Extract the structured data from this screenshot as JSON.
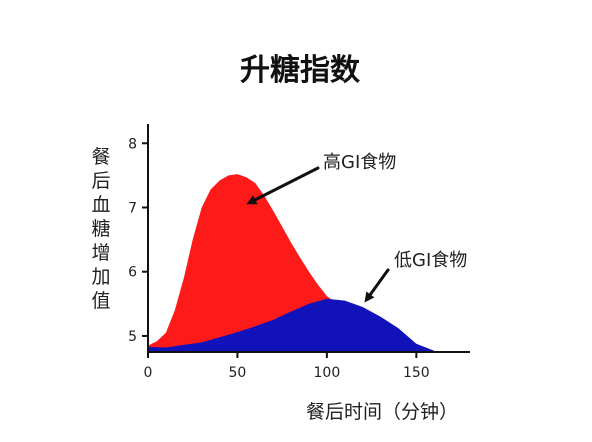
{
  "chart_data": {
    "type": "area",
    "title": "升糖指数",
    "xlabel": "餐后时间（分钟）",
    "ylabel": "餐后血糖增加值",
    "xlim": [
      0,
      180
    ],
    "ylim": [
      4.75,
      8.3
    ],
    "xticks": [
      0,
      50,
      100,
      150
    ],
    "yticks": [
      5,
      6,
      7,
      8
    ],
    "grid": false,
    "legend": "none",
    "series": [
      {
        "name": "高GI食物",
        "color": "#ff1a1a",
        "x": [
          0,
          5,
          10,
          15,
          20,
          25,
          30,
          35,
          40,
          45,
          50,
          55,
          60,
          65,
          70,
          75,
          80,
          85,
          90,
          95,
          100,
          105,
          110,
          115,
          120,
          125,
          130,
          135,
          140,
          145,
          150,
          155,
          160
        ],
        "y": [
          4.85,
          4.92,
          5.05,
          5.4,
          5.9,
          6.5,
          7.0,
          7.28,
          7.42,
          7.5,
          7.52,
          7.47,
          7.38,
          7.18,
          6.95,
          6.7,
          6.45,
          6.22,
          6.0,
          5.8,
          5.62,
          5.52,
          5.45,
          5.38,
          5.3,
          5.22,
          5.15,
          5.07,
          4.98,
          4.9,
          4.83,
          4.79,
          4.77
        ]
      },
      {
        "name": "低GI食物",
        "color": "#1212bb",
        "x": [
          0,
          10,
          20,
          30,
          40,
          50,
          60,
          70,
          80,
          90,
          100,
          110,
          120,
          130,
          140,
          150,
          160
        ],
        "y": [
          4.83,
          4.82,
          4.86,
          4.9,
          4.98,
          5.06,
          5.15,
          5.25,
          5.38,
          5.5,
          5.58,
          5.55,
          5.45,
          5.3,
          5.12,
          4.88,
          4.77
        ]
      }
    ],
    "annotations": [
      {
        "text": "高GI食物",
        "target": [
          55,
          7.05
        ]
      },
      {
        "text": "低GI食物",
        "target": [
          121,
          5.52
        ]
      }
    ]
  }
}
